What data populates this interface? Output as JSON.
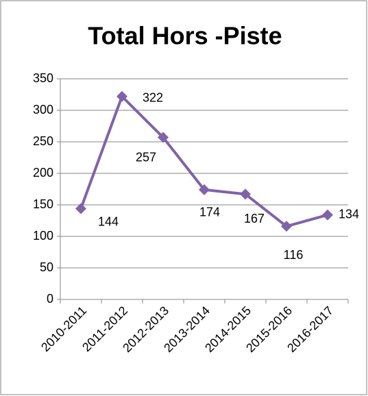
{
  "chart_data": {
    "type": "line",
    "title": "Total Hors -Piste",
    "categories": [
      "2010-2011",
      "2011-2012",
      "2012-2013",
      "2013-2014",
      "2014-2015",
      "2015-2016",
      "2016-2017"
    ],
    "series": [
      {
        "name": "Total Hors -Piste",
        "color": "#7f63a8",
        "values": [
          144,
          322,
          257,
          174,
          167,
          116,
          134
        ]
      }
    ],
    "ylim": [
      0,
      350
    ],
    "yticks": [
      0,
      50,
      100,
      150,
      200,
      250,
      300,
      350
    ],
    "grid": true
  }
}
